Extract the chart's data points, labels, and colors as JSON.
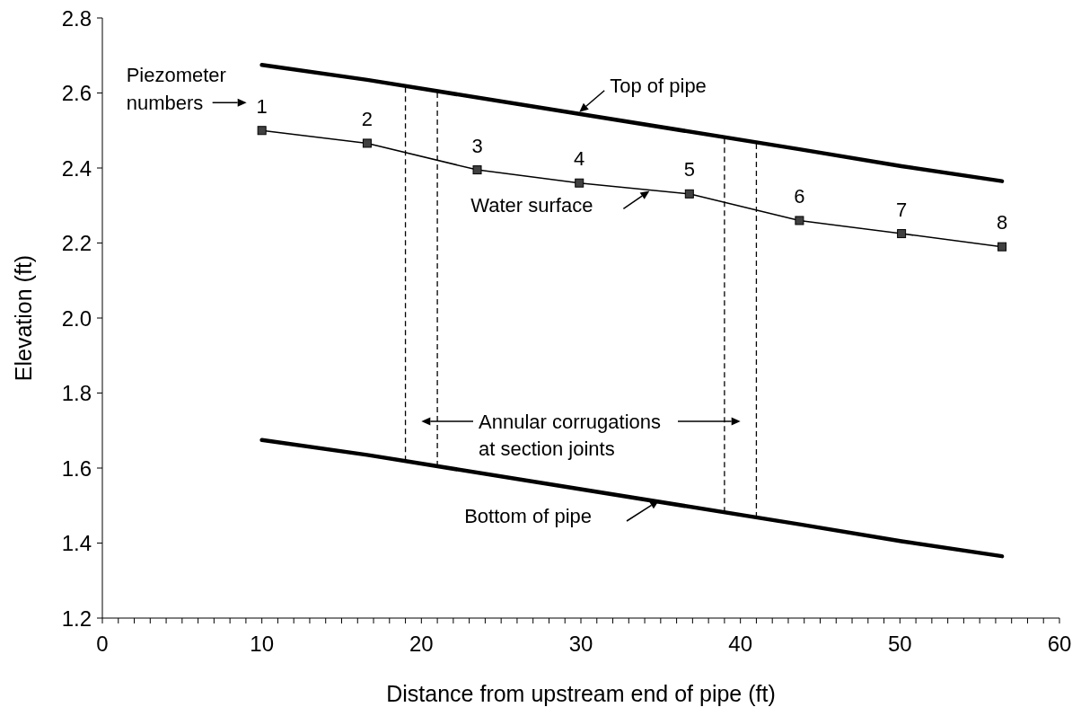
{
  "chart_data": {
    "type": "line",
    "xlabel": "Distance from upstream end of pipe (ft)",
    "ylabel": "Elevation (ft)",
    "xlim": [
      0,
      60
    ],
    "ylim": [
      1.2,
      2.8
    ],
    "xticks": [
      0,
      {
        "value": 1,
        "label": null
      },
      {
        "value": 2,
        "label": null
      },
      {
        "value": 3,
        "label": null
      },
      {
        "value": 4,
        "label": null
      },
      {
        "value": 5,
        "label": null
      },
      {
        "value": 6,
        "label": null
      },
      {
        "value": 7,
        "label": null
      },
      {
        "value": 8,
        "label": null
      },
      {
        "value": 9,
        "label": null
      },
      10,
      {
        "value": 11,
        "label": null
      },
      {
        "value": 12,
        "label": null
      },
      {
        "value": 13,
        "label": null
      },
      {
        "value": 14,
        "label": null
      },
      {
        "value": 15,
        "label": null
      },
      {
        "value": 16,
        "label": null
      },
      {
        "value": 17,
        "label": null
      },
      {
        "value": 18,
        "label": null
      },
      {
        "value": 19,
        "label": null
      },
      20,
      {
        "value": 21,
        "label": null
      },
      {
        "value": 22,
        "label": null
      },
      {
        "value": 23,
        "label": null
      },
      {
        "value": 24,
        "label": null
      },
      {
        "value": 25,
        "label": null
      },
      {
        "value": 26,
        "label": null
      },
      {
        "value": 27,
        "label": null
      },
      {
        "value": 28,
        "label": null
      },
      {
        "value": 29,
        "label": null
      },
      30,
      {
        "value": 31,
        "label": null
      },
      {
        "value": 32,
        "label": null
      },
      {
        "value": 33,
        "label": null
      },
      {
        "value": 34,
        "label": null
      },
      {
        "value": 35,
        "label": null
      },
      {
        "value": 36,
        "label": null
      },
      {
        "value": 37,
        "label": null
      },
      {
        "value": 38,
        "label": null
      },
      {
        "value": 39,
        "label": null
      },
      40,
      {
        "value": 41,
        "label": null
      },
      {
        "value": 42,
        "label": null
      },
      {
        "value": 43,
        "label": null
      },
      {
        "value": 44,
        "label": null
      },
      {
        "value": 45,
        "label": null
      },
      {
        "value": 46,
        "label": null
      },
      {
        "value": 47,
        "label": null
      },
      {
        "value": 48,
        "label": null
      },
      {
        "value": 49,
        "label": null
      },
      50,
      {
        "value": 51,
        "label": null
      },
      {
        "value": 52,
        "label": null
      },
      {
        "value": 53,
        "label": null
      },
      {
        "value": 54,
        "label": null
      },
      {
        "value": 55,
        "label": null
      },
      {
        "value": 56,
        "label": null
      },
      {
        "value": 57,
        "label": null
      },
      {
        "value": 58,
        "label": null
      },
      {
        "value": 59,
        "label": null
      },
      60
    ],
    "yticks": [
      1.2,
      1.4,
      1.6,
      1.8,
      {
        "value": 2,
        "label": "2.0"
      },
      2.2,
      2.4,
      2.6,
      2.8
    ],
    "series": [
      {
        "color": "#000000",
        "marker": "none",
        "x": [
          10,
          16.6,
          43.7,
          50.1,
          56.4
        ],
        "values": [
          2.675,
          2.635,
          2.45,
          2.405,
          2.365
        ]
      },
      {
        "color": "#000000",
        "marker": "none",
        "x": [
          10,
          16.6,
          43.7,
          50.1,
          56.4
        ],
        "values": [
          1.675,
          1.635,
          1.45,
          1.405,
          1.365
        ]
      },
      {
        "color": "#000000",
        "marker": "square",
        "x": [
          10,
          16.6,
          23.5,
          29.9,
          36.8,
          43.7,
          50.1,
          56.4
        ],
        "values": [
          2.5,
          2.466,
          2.395,
          2.36,
          2.331,
          2.26,
          2.225,
          2.19
        ]
      }
    ],
    "ref_lines": [
      {
        "axis": "x",
        "value": 19,
        "color": "#000000",
        "line_style": "dashed"
      },
      {
        "axis": "x",
        "value": 21,
        "color": "#000000",
        "line_style": "dashed"
      },
      {
        "axis": "x",
        "value": 39,
        "color": "#000000",
        "line_style": "dashed"
      },
      {
        "axis": "x",
        "value": 41,
        "color": "#000000",
        "line_style": "dashed"
      }
    ],
    "annotations": [
      "Piezometer numbers",
      {
        "text": "Top of pipe",
        "x": 29.9,
        "y": 2.549
      },
      {
        "text": "Water surface",
        "x": 34.3,
        "y": 2.339
      },
      "Annular corrugations at section joints",
      "Bottom of pipe",
      {
        "text": "1",
        "x": 10,
        "y": 2.5
      },
      {
        "text": "2",
        "x": 16.6,
        "y": 2.466
      },
      {
        "text": "3",
        "x": 23.5,
        "y": 2.395
      },
      {
        "text": "4",
        "x": 29.9,
        "y": 2.36
      },
      {
        "text": "5",
        "x": 36.8,
        "y": 2.331
      },
      {
        "text": "6",
        "x": 43.7,
        "y": 2.26
      },
      {
        "text": "7",
        "x": 50.1,
        "y": 2.225
      },
      {
        "text": "8",
        "x": 56.4,
        "y": 2.19
      }
    ]
  }
}
